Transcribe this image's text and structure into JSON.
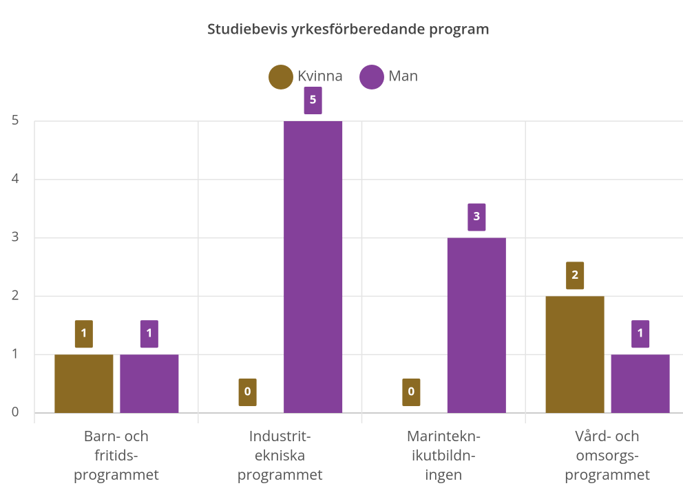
{
  "chart_data": {
    "type": "bar",
    "title": "Studiebevis yrkesförberedande program",
    "categories": [
      "Barn- och\nfritids-\nprogrammet",
      "Industrit-\nekniska\nprogrammet",
      "Marintekn-\nikutbildn-\ningen",
      "Vård- och\nomsorgs-\nprogrammet"
    ],
    "series": [
      {
        "name": "Kvinna",
        "color": "#8b6a23",
        "values": [
          1,
          0,
          0,
          2
        ]
      },
      {
        "name": "Man",
        "color": "#84409a",
        "values": [
          1,
          5,
          3,
          1
        ]
      }
    ],
    "ylim": [
      0,
      5
    ],
    "yticks": [
      0,
      1,
      2,
      3,
      4,
      5
    ],
    "grid": true,
    "legend": "top"
  }
}
